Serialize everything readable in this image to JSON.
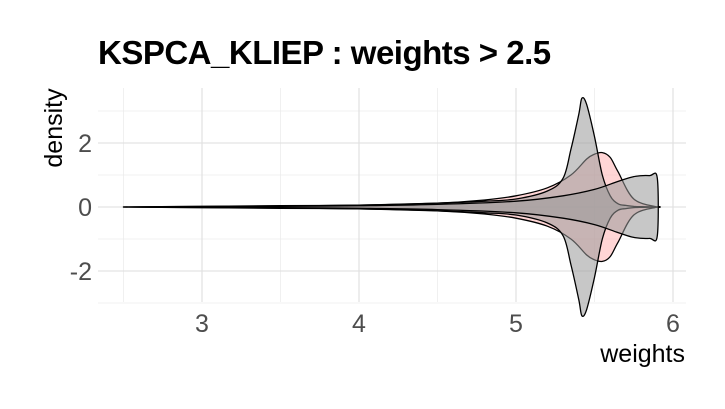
{
  "chart_data": {
    "type": "violin",
    "title": "KSPCA_KLIEP : weights > 2.5",
    "xlabel": "weights",
    "ylabel": "density",
    "xlim": [
      2.5,
      6
    ],
    "ylim": [
      -3,
      3.6
    ],
    "x_ticks": [
      3,
      4,
      5,
      6
    ],
    "y_ticks": [
      -2,
      0,
      2
    ],
    "grid": true,
    "legend": "none",
    "series": [
      {
        "fill": "#ffb3b3",
        "fill_opacity": 0.55,
        "x": [
          2.5,
          3.0,
          3.5,
          4.0,
          4.5,
          4.8,
          5.0,
          5.2,
          5.35,
          5.45,
          5.5,
          5.55,
          5.6,
          5.65,
          5.75,
          5.9
        ],
        "half_width": [
          0.0,
          0.02,
          0.04,
          0.06,
          0.12,
          0.22,
          0.35,
          0.6,
          1.0,
          1.5,
          1.65,
          1.7,
          1.55,
          1.1,
          0.25,
          0.0
        ]
      },
      {
        "fill": "#999999",
        "fill_opacity": 0.55,
        "x": [
          2.5,
          3.0,
          3.5,
          4.0,
          4.5,
          4.8,
          5.0,
          5.2,
          5.3,
          5.35,
          5.4,
          5.42,
          5.45,
          5.5,
          5.55,
          5.6,
          5.65,
          5.7,
          5.75,
          5.8,
          5.9
        ],
        "half_width": [
          0.0,
          0.02,
          0.03,
          0.06,
          0.12,
          0.18,
          0.25,
          0.5,
          0.9,
          1.8,
          2.9,
          3.4,
          3.2,
          2.2,
          1.0,
          0.35,
          0.1,
          0.05,
          0.02,
          0.01,
          0.0
        ]
      },
      {
        "fill": "#999999",
        "fill_opacity": 0.55,
        "x": [
          2.5,
          3.0,
          3.5,
          4.0,
          4.5,
          5.0,
          5.3,
          5.5,
          5.65,
          5.75,
          5.85,
          5.9
        ],
        "half_width": [
          0.0,
          0.01,
          0.02,
          0.04,
          0.08,
          0.18,
          0.35,
          0.55,
          0.8,
          0.95,
          0.98,
          0.9
        ]
      }
    ]
  }
}
